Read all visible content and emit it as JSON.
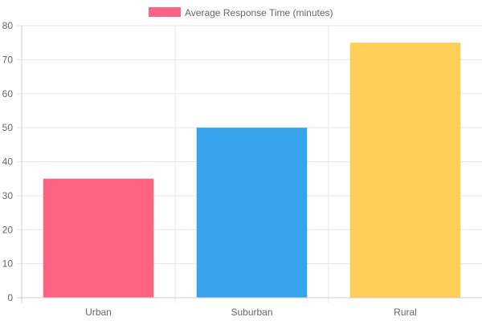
{
  "chart_data": {
    "type": "bar",
    "categories": [
      "Urban",
      "Suburban",
      "Rural"
    ],
    "series": [
      {
        "name": "Average Response Time (minutes)",
        "values": [
          35,
          50,
          75
        ]
      }
    ],
    "bar_colors": [
      "#ff6384",
      "#36a2eb",
      "#ffce56"
    ],
    "legend_color": "#ff6384",
    "ylim": [
      0,
      80
    ],
    "y_ticks": [
      0,
      10,
      20,
      30,
      40,
      50,
      60,
      70,
      80
    ],
    "grid": true,
    "legend_position": "top-center"
  }
}
